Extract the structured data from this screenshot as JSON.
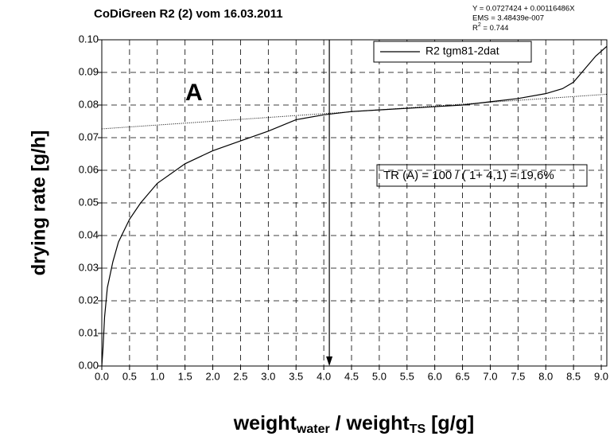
{
  "chart_data": {
    "type": "line",
    "title": "CoDiGreen R2  (2)  vom 16.03.2011",
    "fit_info": {
      "equation": "Y = 0.0727424 + 0.00116486X",
      "ems": "EMS = 3.48439e-007",
      "r2": [
        "R",
        "2",
        " = 0.744"
      ]
    },
    "ylabel": "drying rate [g/h]",
    "xlabel": [
      "weight",
      "water",
      " / weight",
      "TS",
      " [g/g]"
    ],
    "annotations": [
      "A",
      "TR (A) = 100 / ( 1+ 4,1) = 19,6%"
    ],
    "xlim": [
      0,
      9.1
    ],
    "ylim": [
      0,
      0.1
    ],
    "xticks": [
      {
        "value": 0,
        "label": "0.0"
      },
      0.5,
      {
        "value": 1,
        "label": "1.0"
      },
      1.5,
      {
        "value": 2,
        "label": "2.0"
      },
      2.5,
      {
        "value": 3,
        "label": "3.0"
      },
      3.5,
      {
        "value": 4,
        "label": "4.0"
      },
      4.5,
      {
        "value": 5,
        "label": "5.0"
      },
      5.5,
      {
        "value": 6,
        "label": "6.0"
      },
      6.5,
      {
        "value": 7,
        "label": "7.0"
      },
      7.5,
      {
        "value": 8,
        "label": "8.0"
      },
      8.5,
      {
        "value": 9,
        "label": "9.0"
      }
    ],
    "yticks": [
      {
        "value": 0,
        "label": "0.00"
      },
      0.01,
      0.02,
      0.03,
      0.04,
      0.05,
      0.06,
      0.07,
      0.08,
      0.09,
      {
        "value": 0.1,
        "label": "0.10"
      }
    ],
    "grid": true,
    "series": [
      {
        "name": "R2 tgm81-2dat",
        "color": "#000000",
        "x": [
          0,
          0.02,
          0.05,
          0.1,
          0.2,
          0.3,
          0.5,
          0.7,
          1.0,
          1.5,
          2.0,
          2.5,
          3.0,
          3.5,
          4.0,
          4.5,
          5.0,
          5.5,
          6.0,
          6.5,
          7.0,
          7.5,
          8.0,
          8.3,
          8.5,
          8.7,
          8.9,
          9.1
        ],
        "values": [
          0,
          0.005,
          0.015,
          0.024,
          0.032,
          0.038,
          0.045,
          0.05,
          0.056,
          0.062,
          0.066,
          0.069,
          0.072,
          0.0755,
          0.077,
          0.078,
          0.0785,
          0.079,
          0.0795,
          0.08,
          0.081,
          0.082,
          0.0835,
          0.085,
          0.087,
          0.091,
          0.095,
          0.098
        ]
      }
    ],
    "trend": {
      "x": [
        0,
        9.1
      ],
      "values": [
        0.0727,
        0.0833
      ]
    },
    "arrow_x": 4.1
  }
}
